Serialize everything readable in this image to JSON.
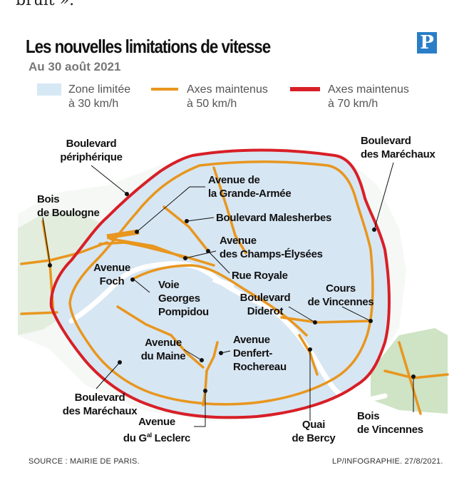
{
  "top_text": "bruit ».",
  "title": "Les nouvelles limitations de vitesse",
  "subtitle": "Au 30 août 2021",
  "logo_letter": "P",
  "legend": [
    {
      "line1": "Zone limitée",
      "line2": "à 30 km/h",
      "color": "#d7e8f5"
    },
    {
      "line1": "Axes maintenus",
      "line2": "à 50 km/h",
      "color": "#e8961e"
    },
    {
      "line1": "Axes maintenus",
      "line2": "à 70 km/h",
      "color": "#d81f27"
    }
  ],
  "labels": {
    "peripherique_1": "Boulevard",
    "peripherique_2": "périphérique",
    "marechaux_ne_1": "Boulevard",
    "marechaux_ne_2": "des Maréchaux",
    "boulogne_1": "Bois",
    "boulogne_2": "de Boulogne",
    "grande_armee_1": "Avenue de",
    "grande_armee_2": "la Grande-Armée",
    "malesherbes": "Boulevard Malesherbes",
    "champs_1": "Avenue",
    "champs_2": "des Champs-Élysées",
    "foch_1": "Avenue",
    "foch_2": "Foch",
    "royale": "Rue Royale",
    "pompidou_1": "Voie",
    "pompidou_2": "Georges",
    "pompidou_3": "Pompidou",
    "diderot_1": "Boulevard",
    "diderot_2": "Diderot",
    "vincennes_cours_1": "Cours",
    "vincennes_cours_2": "de Vincennes",
    "maine_1": "Avenue",
    "maine_2": "du Maine",
    "denfert_1": "Avenue",
    "denfert_2": "Denfert-",
    "denfert_3": "Rochereau",
    "marechaux_sw_1": "Boulevard",
    "marechaux_sw_2": "des Maréchaux",
    "leclerc_1": "Avenue",
    "leclerc_2": "du G",
    "leclerc_sup": "al",
    "leclerc_3": " Leclerc",
    "bercy_1": "Quai",
    "bercy_2": "de Bercy",
    "bois_vincennes_1": "Bois",
    "bois_vincennes_2": "de Vincennes"
  },
  "footer": {
    "source": "SOURCE : MAIRIE DE PARIS.",
    "credit": "LP/INFOGRAPHIE.  27/8/2021."
  }
}
